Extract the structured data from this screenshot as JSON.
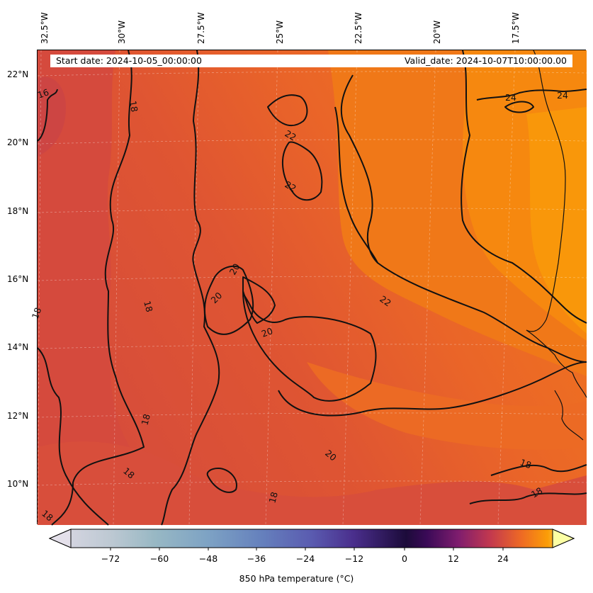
{
  "header": {
    "start_date": "Start date: 2024-10-05_00:00:00",
    "valid_date": "Valid_date: 2024-10-07T10:00:00.00"
  },
  "axes": {
    "longitudes": [
      "32.5°W",
      "30°W",
      "27.5°W",
      "25°W",
      "22.5°W",
      "20°W",
      "17.5°W"
    ],
    "latitudes": [
      "22°N",
      "20°N",
      "18°N",
      "16°N",
      "14°N",
      "12°N",
      "10°N"
    ]
  },
  "contour_labels": [
    "16",
    "18",
    "18",
    "18",
    "18",
    "18",
    "18",
    "18",
    "18",
    "18",
    "20",
    "20",
    "20",
    "20",
    "22",
    "22",
    "22",
    "24",
    "24"
  ],
  "colorbar": {
    "ticks": [
      "−72",
      "−60",
      "−48",
      "−36",
      "−24",
      "−12",
      "0",
      "12",
      "24"
    ],
    "title": "850 hPa temperature (°C)",
    "range": [
      -84,
      36
    ],
    "extend": "both"
  },
  "colors": {
    "warm_red": "#d64a3c",
    "orange": "#e8622a",
    "bright_orange": "#f4820f",
    "yellow_orange": "#fa9a09",
    "coastline": "#000000"
  }
}
